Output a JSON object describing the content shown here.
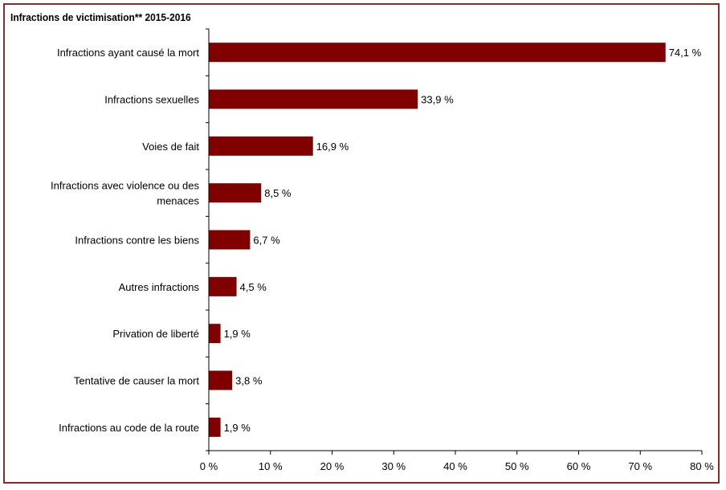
{
  "chart_data": {
    "type": "bar",
    "orientation": "horizontal",
    "title": "Infractions de victimisation**  2015-2016",
    "categories": [
      "Infractions ayant causé la mort",
      "Infractions sexuelles",
      "Voies de fait",
      "Infractions avec violence ou des menaces",
      "Infractions contre les biens",
      "Autres infractions",
      "Privation de liberté",
      "Tentative de causer la mort",
      "Infractions au code de la route"
    ],
    "values": [
      74.1,
      33.9,
      16.9,
      8.5,
      6.7,
      4.5,
      1.9,
      3.8,
      1.9
    ],
    "value_labels": [
      "74,1 %",
      "33,9 %",
      "16,9 %",
      "8,5 %",
      "6,7 %",
      "4,5 %",
      "1,9 %",
      "3,8 %",
      "1,9 %"
    ],
    "xlim": [
      0,
      80
    ],
    "x_ticks": [
      0,
      10,
      20,
      30,
      40,
      50,
      60,
      70,
      80
    ],
    "x_tick_labels": [
      "0 %",
      "10 %",
      "20 %",
      "30 %",
      "40 %",
      "50 %",
      "60 %",
      "70 %",
      "80 %"
    ],
    "grid": false,
    "legend": "none",
    "bar_color": "#800000",
    "frame_color": "#8a2a2a"
  }
}
